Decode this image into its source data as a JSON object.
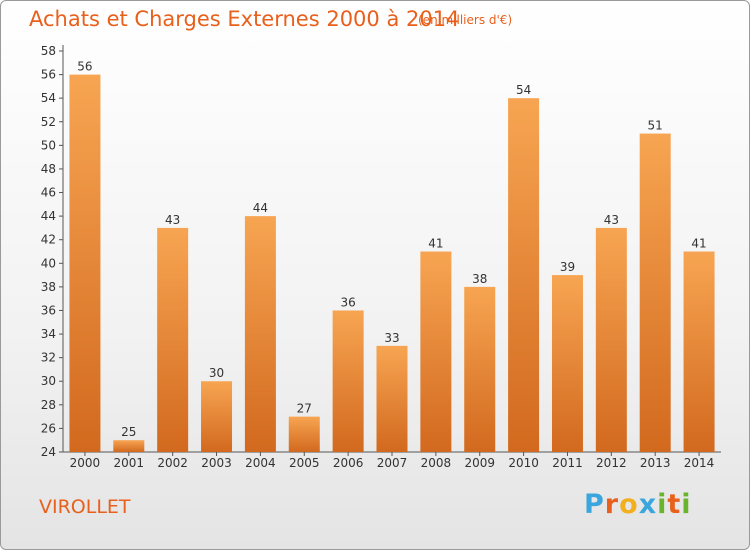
{
  "title": "Achats et Charges Externes 2000 à 2014",
  "subtitle": "(en milliers d'€)",
  "commune": "VIROLLET",
  "logo": {
    "text": "Proxiti",
    "letters": [
      "P",
      "r",
      "o",
      "x",
      "i",
      "t",
      "i"
    ],
    "colors": [
      "#3aa6dd",
      "#e8601c",
      "#f2b01e",
      "#3aa6dd",
      "#6ab42d",
      "#e8601c",
      "#6ab42d"
    ]
  },
  "colors": {
    "accent": "#e8601c",
    "bar_top": "#f7a552",
    "bar_bottom": "#d2691e"
  },
  "chart_data": {
    "type": "bar",
    "categories": [
      "2000",
      "2001",
      "2002",
      "2003",
      "2004",
      "2005",
      "2006",
      "2007",
      "2008",
      "2009",
      "2010",
      "2011",
      "2012",
      "2013",
      "2014"
    ],
    "values": [
      56,
      25,
      43,
      30,
      44,
      27,
      36,
      33,
      41,
      38,
      54,
      39,
      43,
      51,
      41
    ],
    "title": "Achats et Charges Externes 2000 à 2014",
    "ylim": [
      24,
      58
    ],
    "yticks": [
      24,
      26,
      28,
      30,
      32,
      34,
      36,
      38,
      40,
      42,
      44,
      46,
      48,
      50,
      52,
      54,
      56,
      58
    ],
    "grid": false,
    "data_labels": true
  }
}
